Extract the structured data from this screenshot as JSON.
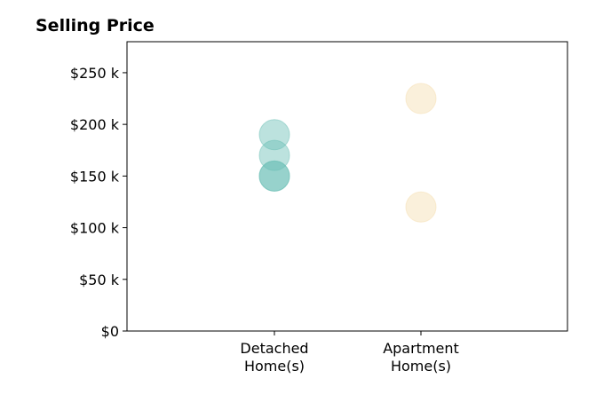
{
  "chart_data": {
    "type": "scatter",
    "title": "Selling Price",
    "xlabel": "",
    "ylabel": "",
    "categories": [
      [
        "Detached",
        "Home(s)"
      ],
      [
        "Apartment",
        "Home(s)"
      ]
    ],
    "ylim": [
      0,
      280000
    ],
    "yticks": [
      {
        "value": 0,
        "label": "$0"
      },
      {
        "value": 50000,
        "label": "$50 k"
      },
      {
        "value": 100000,
        "label": "$100 k"
      },
      {
        "value": 150000,
        "label": "$150 k"
      },
      {
        "value": 200000,
        "label": "$200 k"
      },
      {
        "value": 250000,
        "label": "$250 k"
      }
    ],
    "grid": false,
    "legend": "none",
    "series": [
      {
        "category": 0,
        "color": "#6bbfb5",
        "values": [
          190000,
          170000,
          150000,
          150000
        ]
      },
      {
        "category": 1,
        "color": "#f5deb0",
        "values": [
          225000,
          120000
        ]
      }
    ]
  }
}
